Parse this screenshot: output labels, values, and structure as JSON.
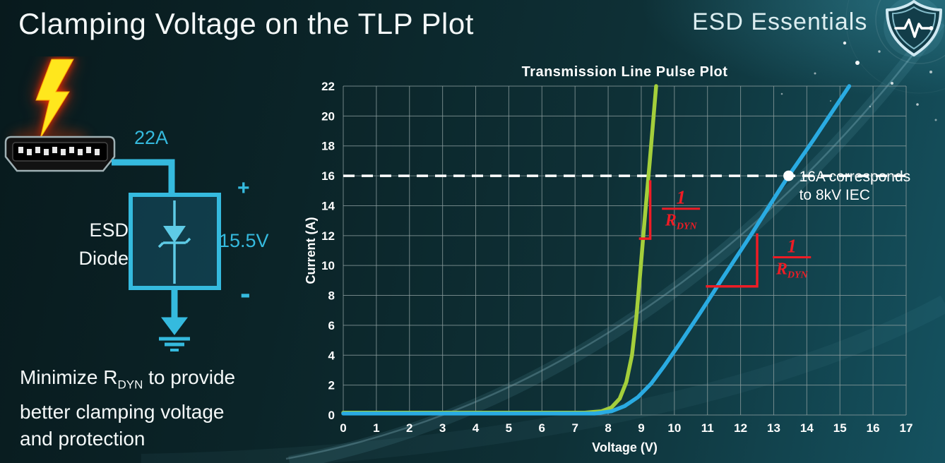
{
  "slide": {
    "title": "Clamping Voltage on the TLP Plot",
    "brand": "ESD Essentials"
  },
  "diagram": {
    "surge_current": "22A",
    "device_name_line1": "ESD",
    "device_name_line2": "Diode",
    "polarity_plus": "+",
    "clamp_voltage": "15.5V",
    "polarity_minus": "-"
  },
  "caption": {
    "line1_pre": "Minimize R",
    "line1_sub": "DYN",
    "line1_post": " to provide",
    "line2": "better clamping voltage",
    "line3": "and protection"
  },
  "colors": {
    "accent_cyan": "#35bade",
    "bolt_yellow": "#ffe71d",
    "curve_green": "#a4cf3b",
    "curve_blue": "#2aabe2",
    "annotation_red": "#ee1c25",
    "grid_gray": "#8b9c9d",
    "text_white": "#ffffff"
  },
  "chart_data": {
    "type": "line",
    "title": "Transmission Line Pulse Plot",
    "xlabel": "Voltage (V)",
    "ylabel": "Current (A)",
    "xlim": [
      0,
      17
    ],
    "ylim": [
      0,
      22
    ],
    "xticks": [
      0,
      1,
      2,
      3,
      4,
      5,
      6,
      7,
      8,
      9,
      10,
      11,
      12,
      13,
      14,
      15,
      16,
      17
    ],
    "yticks": [
      0,
      2,
      4,
      6,
      8,
      10,
      12,
      14,
      16,
      18,
      20,
      22
    ],
    "grid": true,
    "legend": "none",
    "colors": {
      "grid": "#8b9c9d",
      "text": "#ffffff",
      "dashed": "#ffffff",
      "annotation": "#ee1c25"
    },
    "series": [
      {
        "name": "green-curve",
        "color": "#a4cf3b",
        "points": [
          [
            0,
            0.15
          ],
          [
            7.3,
            0.15
          ],
          [
            7.8,
            0.25
          ],
          [
            8.1,
            0.5
          ],
          [
            8.35,
            1.1
          ],
          [
            8.55,
            2.2
          ],
          [
            8.72,
            4.0
          ],
          [
            8.85,
            6.5
          ],
          [
            8.97,
            9.5
          ],
          [
            9.1,
            13
          ],
          [
            9.25,
            16.8
          ],
          [
            9.45,
            22
          ]
        ]
      },
      {
        "name": "blue-curve",
        "color": "#2aabe2",
        "points": [
          [
            0,
            0.1
          ],
          [
            7.6,
            0.1
          ],
          [
            8.1,
            0.25
          ],
          [
            8.5,
            0.6
          ],
          [
            8.9,
            1.2
          ],
          [
            9.3,
            2.1
          ],
          [
            9.7,
            3.3
          ],
          [
            10.2,
            4.9
          ],
          [
            10.8,
            6.9
          ],
          [
            11.5,
            9.3
          ],
          [
            12.3,
            12
          ],
          [
            13.1,
            14.8
          ],
          [
            13.45,
            16
          ],
          [
            14.2,
            18.4
          ],
          [
            15.28,
            22
          ]
        ]
      }
    ],
    "annotations": {
      "dashed_line": {
        "y": 16
      },
      "marker": {
        "x": 13.45,
        "y": 16
      },
      "marker_label_line1": "16A corresponds",
      "marker_label_line2": "to 8kV IEC",
      "slope_marks": [
        {
          "points": [
            [
              8.93,
              11.8
            ],
            [
              9.27,
              11.8
            ],
            [
              9.27,
              15.7
            ]
          ]
        },
        {
          "points": [
            [
              10.95,
              8.6
            ],
            [
              12.5,
              8.6
            ],
            [
              12.5,
              12.15
            ]
          ]
        }
      ],
      "rdyn_fractions": [
        {
          "numerator": "1",
          "denominator": "R",
          "denominator_sub": "DYN",
          "x": 10.2,
          "y": 13.8
        },
        {
          "numerator": "1",
          "denominator": "R",
          "denominator_sub": "DYN",
          "x": 13.55,
          "y": 10.55
        }
      ]
    }
  }
}
